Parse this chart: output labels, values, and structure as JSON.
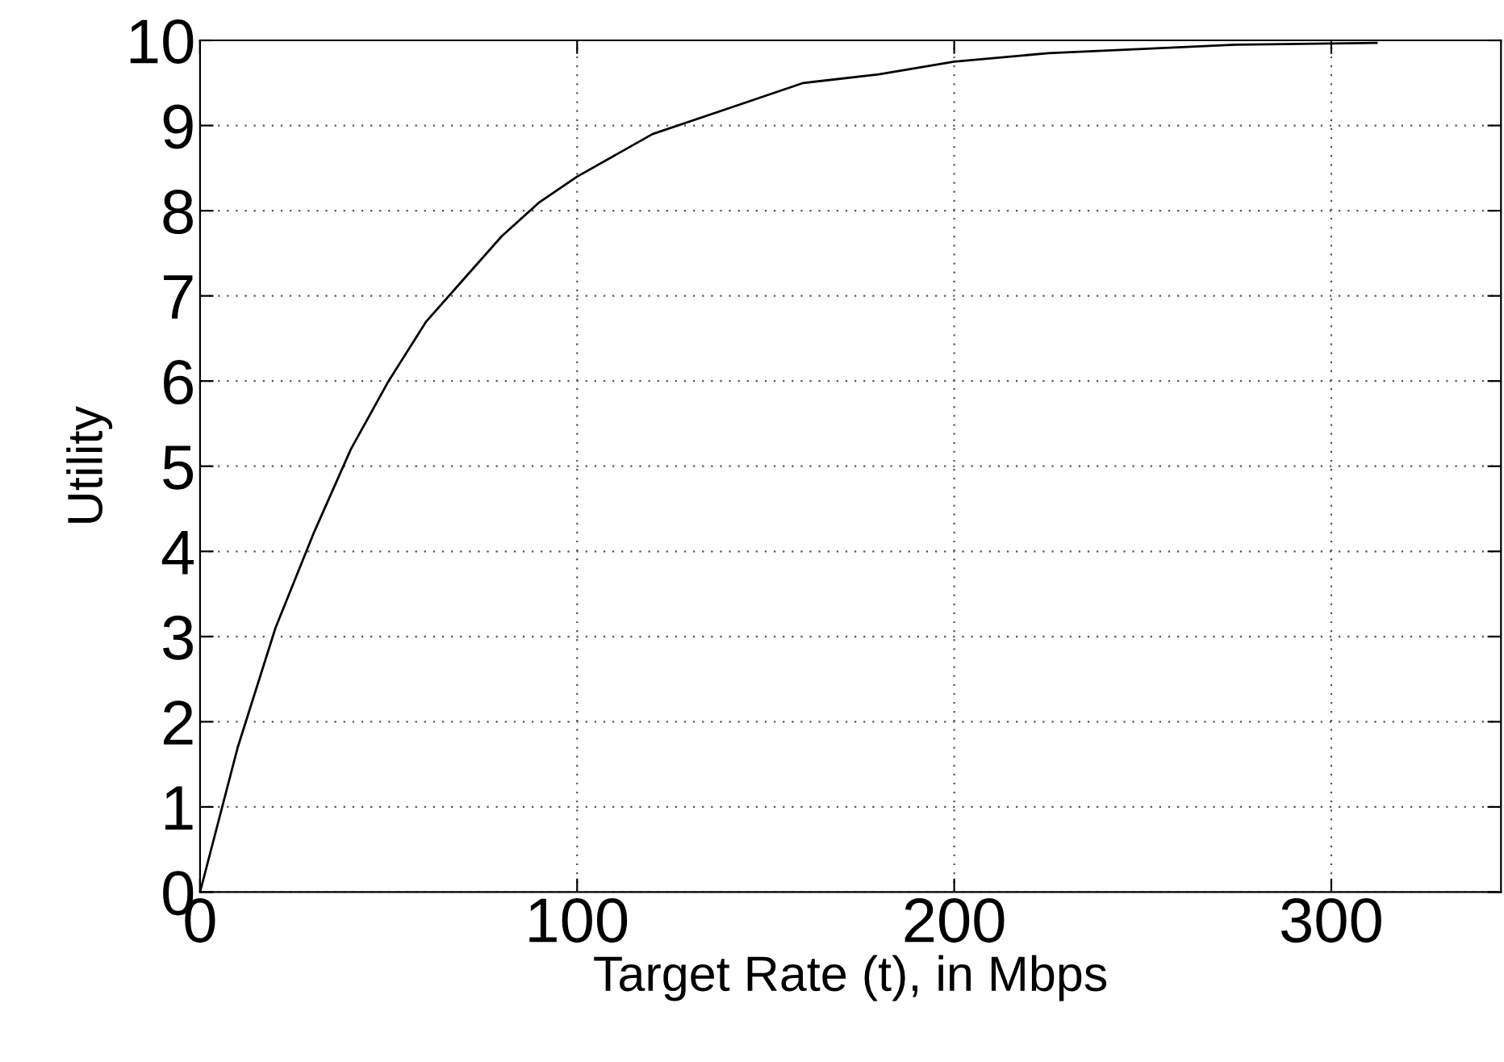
{
  "chart_data": {
    "type": "line",
    "xlabel": "Target Rate (t), in Mbps",
    "ylabel": "Utility",
    "x": [
      0,
      10,
      20,
      30,
      40,
      50,
      60,
      70,
      80,
      90,
      100,
      120,
      140,
      160,
      180,
      200,
      225,
      250,
      275,
      312
    ],
    "series": [
      {
        "color": "#000000",
        "values": [
          0,
          1.7,
          3.1,
          4.2,
          5.2,
          6.0,
          6.7,
          7.2,
          7.7,
          8.1,
          8.4,
          8.9,
          9.2,
          9.5,
          9.6,
          9.75,
          9.85,
          9.9,
          9.95,
          9.97
        ]
      }
    ],
    "xlim": [
      0,
      345
    ],
    "ylim": [
      0,
      10
    ],
    "xticks": [
      0,
      100,
      200,
      300
    ],
    "yticks": [
      0,
      1,
      2,
      3,
      4,
      5,
      6,
      7,
      8,
      9,
      10
    ],
    "grid": true,
    "marker": "none",
    "line_style": "solid"
  }
}
